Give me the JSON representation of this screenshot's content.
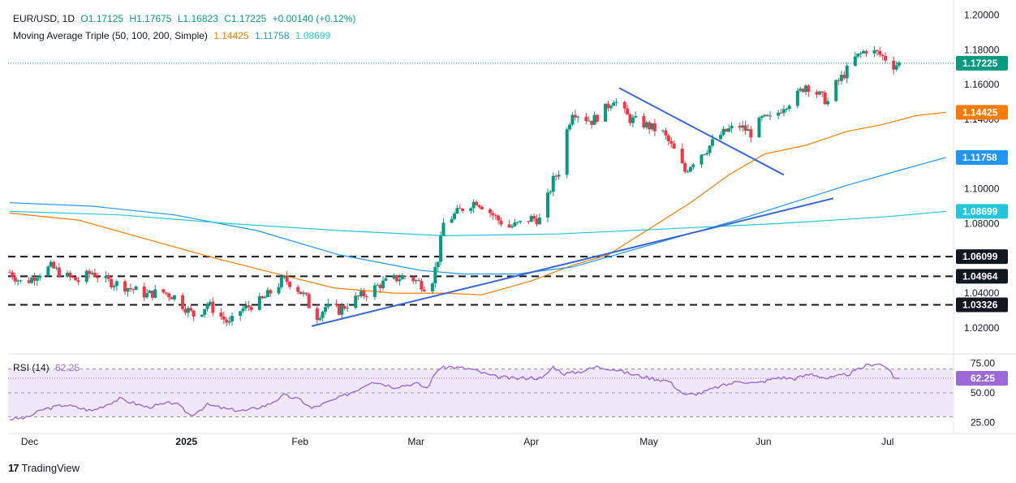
{
  "header": {
    "symbol": "EUR/USD, 1D",
    "open": "O1.17125",
    "high": "H1.17675",
    "low": "L1.16823",
    "close": "C1.17225",
    "change": "+0.00140 (+0.12%)",
    "ma_title": "Moving Average Triple (50, 100, 200, Simple)",
    "ma50": "1.14425",
    "ma100": "1.11758",
    "ma200": "1.08699"
  },
  "rsi": {
    "title": "RSI (14)",
    "value": "62.25"
  },
  "branding": {
    "name": "TradingView",
    "mark": "17"
  },
  "colors": {
    "bull": "#089981",
    "bear": "#f23645",
    "ma50": "#f57c00",
    "ma100": "#2196f3",
    "ma200": "#26c6da",
    "trendline": "#3a67d6",
    "rsi": "#9c6ad8",
    "dashed": "#131722"
  },
  "chart_data": [
    {
      "type": "candlestick",
      "title": "EUR/USD, 1D",
      "x_ticks": [
        "Dec",
        "2025",
        "Feb",
        "Mar",
        "Apr",
        "May",
        "Jun",
        "Jul"
      ],
      "y_ticks": [
        "1.20000",
        "1.18000",
        "1.16000",
        "1.14000",
        "1.10000",
        "1.08000",
        "1.04000",
        "1.02000"
      ],
      "ylim": [
        1.005,
        1.203
      ],
      "last_price": {
        "label": "1.17225",
        "value": 1.17225
      },
      "horizontal_levels": [
        {
          "label": "1.06099",
          "value": 1.06099
        },
        {
          "label": "1.04964",
          "value": 1.04964
        },
        {
          "label": "1.03326",
          "value": 1.03326
        }
      ],
      "moving_averages": [
        {
          "name": "50",
          "label": "1.14425",
          "points": [
            [
              0,
              1.086
            ],
            [
              25,
              1.082
            ],
            [
              50,
              1.071
            ],
            [
              75,
              1.06
            ],
            [
              100,
              1.05
            ],
            [
              118,
              1.043
            ],
            [
              140,
              1.04
            ],
            [
              158,
              1.04
            ],
            [
              172,
              1.039
            ],
            [
              190,
              1.047
            ],
            [
              205,
              1.056
            ],
            [
              218,
              1.062
            ],
            [
              232,
              1.076
            ],
            [
              248,
              1.092
            ],
            [
              262,
              1.108
            ],
            [
              275,
              1.12
            ],
            [
              290,
              1.125
            ],
            [
              305,
              1.133
            ],
            [
              318,
              1.137
            ],
            [
              330,
              1.142
            ],
            [
              341,
              1.144
            ]
          ]
        },
        {
          "name": "100",
          "label": "1.11758",
          "points": [
            [
              0,
              1.092
            ],
            [
              30,
              1.09
            ],
            [
              60,
              1.085
            ],
            [
              90,
              1.076
            ],
            [
              120,
              1.062
            ],
            [
              150,
              1.053
            ],
            [
              165,
              1.051
            ],
            [
              185,
              1.051
            ],
            [
              205,
              1.055
            ],
            [
              225,
              1.064
            ],
            [
              245,
              1.073
            ],
            [
              265,
              1.082
            ],
            [
              285,
              1.092
            ],
            [
              305,
              1.102
            ],
            [
              325,
              1.111
            ],
            [
              341,
              1.118
            ]
          ]
        },
        {
          "name": "200",
          "label": "1.08699",
          "points": [
            [
              0,
              1.087
            ],
            [
              40,
              1.085
            ],
            [
              80,
              1.08
            ],
            [
              120,
              1.076
            ],
            [
              158,
              1.073
            ],
            [
              200,
              1.074
            ],
            [
              240,
              1.077
            ],
            [
              280,
              1.08
            ],
            [
              320,
              1.084
            ],
            [
              341,
              1.087
            ]
          ]
        }
      ],
      "trendlines": [
        {
          "from": [
            110,
            1.021
          ],
          "to": [
            300,
            1.0945
          ]
        },
        {
          "from": [
            222,
            1.158
          ],
          "to": [
            282,
            1.108
          ]
        }
      ],
      "close_path": [
        [
          0,
          1.052
        ],
        [
          5,
          1.045
        ],
        [
          10,
          1.051
        ],
        [
          15,
          1.055
        ],
        [
          20,
          1.05
        ],
        [
          25,
          1.047
        ],
        [
          30,
          1.052
        ],
        [
          35,
          1.047
        ],
        [
          40,
          1.045
        ],
        [
          45,
          1.042
        ],
        [
          50,
          1.039
        ],
        [
          55,
          1.041
        ],
        [
          60,
          1.038
        ],
        [
          65,
          1.03
        ],
        [
          68,
          1.026
        ],
        [
          72,
          1.034
        ],
        [
          76,
          1.028
        ],
        [
          80,
          1.022
        ],
        [
          84,
          1.03
        ],
        [
          88,
          1.033
        ],
        [
          92,
          1.036
        ],
        [
          96,
          1.042
        ],
        [
          100,
          1.048
        ],
        [
          104,
          1.044
        ],
        [
          108,
          1.037
        ],
        [
          111,
          1.025
        ],
        [
          115,
          1.032
        ],
        [
          120,
          1.03
        ],
        [
          125,
          1.036
        ],
        [
          130,
          1.04
        ],
        [
          135,
          1.045
        ],
        [
          140,
          1.048
        ],
        [
          145,
          1.05
        ],
        [
          150,
          1.045
        ],
        [
          153,
          1.042
        ],
        [
          156,
          1.06
        ],
        [
          158,
          1.08
        ],
        [
          162,
          1.085
        ],
        [
          166,
          1.09
        ],
        [
          170,
          1.093
        ],
        [
          174,
          1.088
        ],
        [
          178,
          1.082
        ],
        [
          182,
          1.078
        ],
        [
          186,
          1.08
        ],
        [
          190,
          1.083
        ],
        [
          194,
          1.082
        ],
        [
          196,
          1.095
        ],
        [
          198,
          1.105
        ],
        [
          200,
          1.11
        ],
        [
          202,
          1.128
        ],
        [
          205,
          1.145
        ],
        [
          208,
          1.142
        ],
        [
          212,
          1.139
        ],
        [
          216,
          1.144
        ],
        [
          220,
          1.152
        ],
        [
          222,
          1.147
        ],
        [
          226,
          1.14
        ],
        [
          230,
          1.138
        ],
        [
          234,
          1.135
        ],
        [
          238,
          1.132
        ],
        [
          242,
          1.122
        ],
        [
          246,
          1.11
        ],
        [
          250,
          1.118
        ],
        [
          254,
          1.123
        ],
        [
          258,
          1.13
        ],
        [
          262,
          1.134
        ],
        [
          266,
          1.136
        ],
        [
          270,
          1.132
        ],
        [
          274,
          1.14
        ],
        [
          278,
          1.14
        ],
        [
          282,
          1.148
        ],
        [
          286,
          1.152
        ],
        [
          290,
          1.16
        ],
        [
          294,
          1.155
        ],
        [
          298,
          1.15
        ],
        [
          300,
          1.158
        ],
        [
          304,
          1.166
        ],
        [
          308,
          1.175
        ],
        [
          312,
          1.18
        ],
        [
          316,
          1.178
        ],
        [
          318,
          1.176
        ],
        [
          320,
          1.174
        ],
        [
          322,
          1.171
        ],
        [
          324,
          1.172
        ]
      ],
      "candle_count": 325
    },
    {
      "type": "line",
      "title": "RSI (14)",
      "y_ticks": [
        "75.00",
        "50.00",
        "25.00"
      ],
      "ylim": [
        20,
        80
      ],
      "levels": [
        70,
        30
      ],
      "last": 62.25,
      "points": [
        [
          0,
          28
        ],
        [
          6,
          29
        ],
        [
          12,
          36
        ],
        [
          20,
          40
        ],
        [
          30,
          35
        ],
        [
          40,
          45
        ],
        [
          50,
          38
        ],
        [
          60,
          42
        ],
        [
          66,
          31
        ],
        [
          72,
          40
        ],
        [
          80,
          36
        ],
        [
          86,
          35
        ],
        [
          94,
          40
        ],
        [
          100,
          48
        ],
        [
          106,
          44
        ],
        [
          110,
          37
        ],
        [
          118,
          44
        ],
        [
          126,
          52
        ],
        [
          132,
          60
        ],
        [
          140,
          55
        ],
        [
          148,
          58
        ],
        [
          152,
          54
        ],
        [
          156,
          70
        ],
        [
          160,
          72
        ],
        [
          168,
          70
        ],
        [
          176,
          64
        ],
        [
          184,
          62
        ],
        [
          190,
          63
        ],
        [
          194,
          62
        ],
        [
          198,
          72
        ],
        [
          202,
          66
        ],
        [
          208,
          68
        ],
        [
          214,
          72
        ],
        [
          220,
          70
        ],
        [
          226,
          66
        ],
        [
          232,
          63
        ],
        [
          240,
          60
        ],
        [
          246,
          48
        ],
        [
          252,
          50
        ],
        [
          258,
          55
        ],
        [
          266,
          60
        ],
        [
          272,
          58
        ],
        [
          280,
          63
        ],
        [
          286,
          62
        ],
        [
          292,
          66
        ],
        [
          298,
          62
        ],
        [
          306,
          66
        ],
        [
          312,
          73
        ],
        [
          316,
          75
        ],
        [
          320,
          71
        ],
        [
          322,
          62
        ],
        [
          324,
          62.25
        ]
      ]
    }
  ]
}
